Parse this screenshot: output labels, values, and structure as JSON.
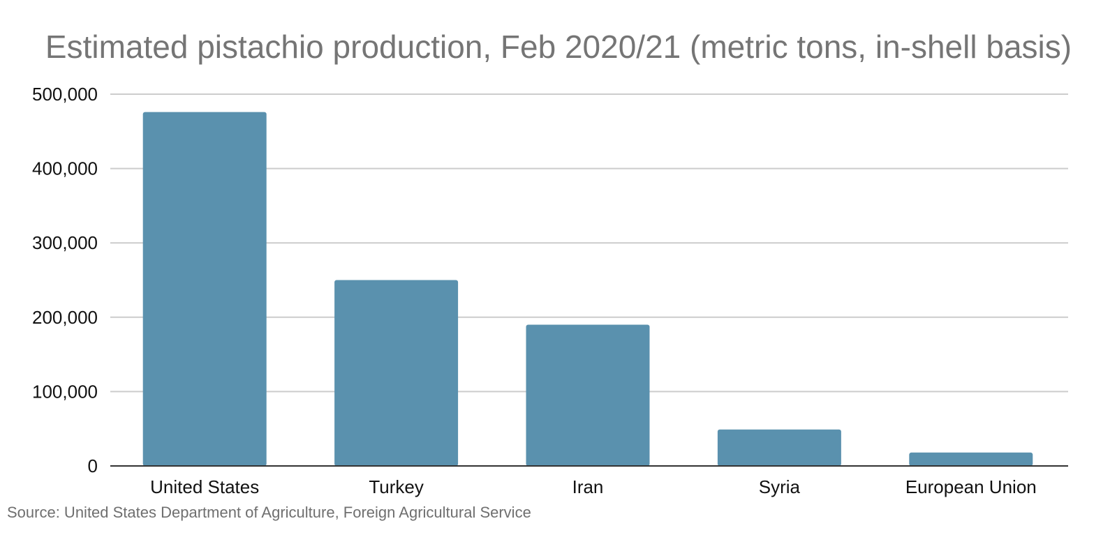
{
  "colors": {
    "bar": "#5a91ae",
    "grid": "#cccccc",
    "axis": "#333333",
    "title": "#757575",
    "source": "#6f6f6f"
  },
  "chart_data": {
    "type": "bar",
    "title": "Estimated pistachio production, Feb 2020/21 (metric tons, in-shell basis)",
    "categories": [
      "United States",
      "Turkey",
      "Iran",
      "Syria",
      "European Union"
    ],
    "values": [
      476000,
      250000,
      190000,
      49000,
      18000
    ],
    "ylim": [
      0,
      500000
    ],
    "yticks": [
      0,
      100000,
      200000,
      300000,
      400000,
      500000
    ],
    "ytick_labels": [
      "0",
      "100,000",
      "200,000",
      "300,000",
      "400,000",
      "500,000"
    ],
    "xlabel": "",
    "ylabel": "",
    "grid": true,
    "legend": "none"
  },
  "source_note": "Source: United States Department of Agriculture, Foreign Agricultural Service"
}
